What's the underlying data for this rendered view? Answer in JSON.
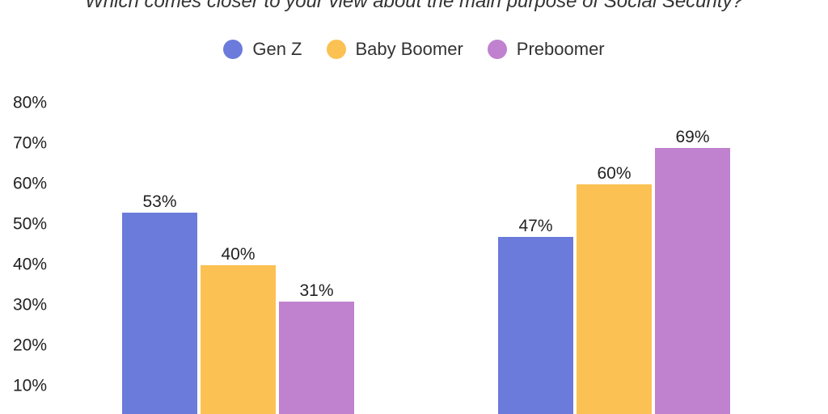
{
  "chart_data": {
    "type": "bar",
    "title": "Which comes closer to your view about the main purpose of Social Security?",
    "categories": [
      "",
      ""
    ],
    "series": [
      {
        "name": "Gen Z",
        "color": "#6b7bdb",
        "values": [
          53,
          47
        ],
        "labels": [
          "53%",
          "47%"
        ]
      },
      {
        "name": "Baby Boomer",
        "color": "#fcc153",
        "values": [
          40,
          60
        ],
        "labels": [
          "40%",
          "60%"
        ]
      },
      {
        "name": "Preboomer",
        "color": "#c081cf",
        "values": [
          31,
          69
        ],
        "labels": [
          "31%",
          "69%"
        ]
      }
    ],
    "y_ticks": [
      "10%",
      "20%",
      "30%",
      "40%",
      "50%",
      "60%",
      "70%",
      "80%"
    ],
    "y_tick_values": [
      10,
      20,
      30,
      40,
      50,
      60,
      70,
      80
    ],
    "ylim": [
      0,
      80
    ],
    "legend_position": "top-center",
    "grid": false
  }
}
